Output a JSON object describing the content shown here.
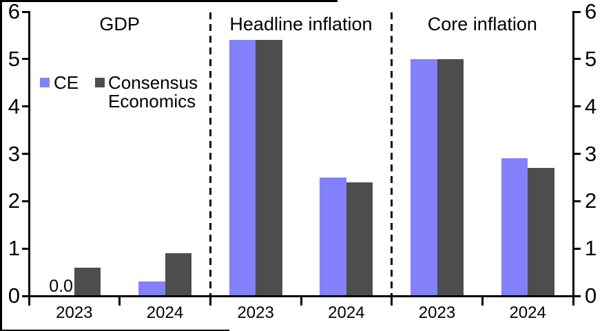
{
  "colors": {
    "ce": "#8281FB",
    "consensus": "#4D4D4D",
    "axis": "#000000",
    "background": "#FFFFFF"
  },
  "legend": {
    "items": [
      {
        "label": "CE",
        "color": "#8281FB"
      },
      {
        "label": "Consensus Economics",
        "color": "#4D4D4D"
      }
    ]
  },
  "chart_data": {
    "type": "bar",
    "series_names": [
      "CE",
      "Consensus Economics"
    ],
    "ylim": [
      0,
      6
    ],
    "yticks": [
      0,
      1,
      2,
      3,
      4,
      5,
      6
    ],
    "grid": false,
    "dual_y_axis": true,
    "legend_position": "upper area of first panel",
    "panel_separator_style": "dashed",
    "panels": [
      {
        "title": "GDP",
        "categories": [
          "2023",
          "2024"
        ],
        "series": [
          {
            "name": "CE",
            "values": [
              0.0,
              0.3
            ]
          },
          {
            "name": "Consensus Economics",
            "values": [
              0.6,
              0.9
            ]
          }
        ],
        "bar_labels": [
          {
            "series_index": 0,
            "category_index": 0,
            "text": "0.0"
          }
        ]
      },
      {
        "title": "Headline inflation",
        "categories": [
          "2023",
          "2024"
        ],
        "series": [
          {
            "name": "CE",
            "values": [
              5.4,
              2.5
            ]
          },
          {
            "name": "Consensus Economics",
            "values": [
              5.4,
              2.4
            ]
          }
        ],
        "bar_labels": []
      },
      {
        "title": "Core inflation",
        "categories": [
          "2023",
          "2024"
        ],
        "series": [
          {
            "name": "CE",
            "values": [
              5.0,
              2.9
            ]
          },
          {
            "name": "Consensus Economics",
            "values": [
              5.0,
              2.7
            ]
          }
        ],
        "bar_labels": []
      }
    ]
  }
}
